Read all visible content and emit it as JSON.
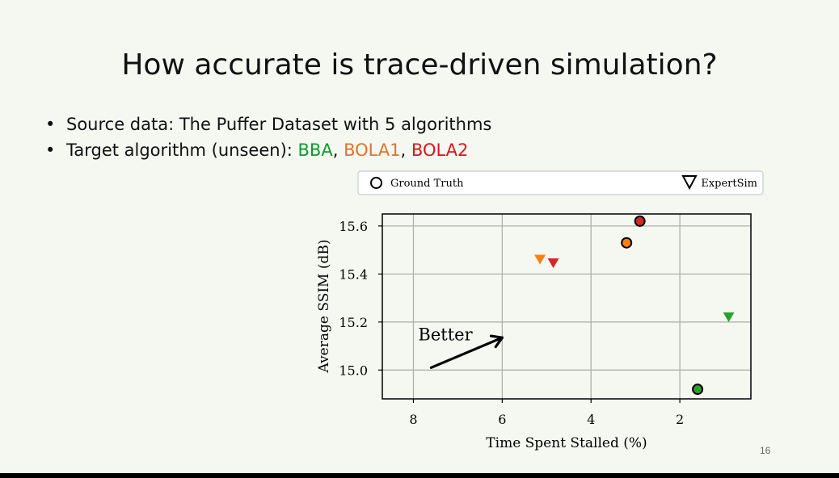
{
  "slide": {
    "title": "How accurate is trace-driven simulation?",
    "page_number": "16",
    "bullets": [
      {
        "text": "Source data: The Puffer Dataset with 5 algorithms"
      },
      {
        "prefix": "Target algorithm (unseen): ",
        "algorithms": [
          {
            "name": "BBA",
            "color": "#0e9a2e"
          },
          {
            "name": "BOLA1",
            "color": "#e3722b"
          },
          {
            "name": "BOLA2",
            "color": "#d8141c"
          }
        ],
        "separator": ", "
      }
    ]
  },
  "chart_data": {
    "type": "scatter",
    "xlabel": "Time Spent Stalled (%)",
    "ylabel": "Average SSIM (dB)",
    "xlim": [
      8.7,
      0.4
    ],
    "ylim": [
      14.88,
      15.65
    ],
    "x_inverted": true,
    "x_ticks": [
      8,
      6,
      4,
      2
    ],
    "y_ticks": [
      15.0,
      15.2,
      15.4,
      15.6
    ],
    "x_tick_labels": [
      "8",
      "6",
      "4",
      "2"
    ],
    "y_tick_labels": [
      "15.0",
      "15.2",
      "15.4",
      "15.6"
    ],
    "grid": true,
    "legend_position": "top, above plot",
    "legend": [
      {
        "label": "Ground Truth",
        "marker": "circle"
      },
      {
        "label": "ExpertSim",
        "marker": "triangle-down"
      }
    ],
    "annotation": {
      "text": "Better",
      "arrow_from": [
        7.6,
        15.01
      ],
      "arrow_to": [
        6.0,
        15.135
      ]
    },
    "series": [
      {
        "name": "Ground Truth",
        "marker": "circle",
        "points": [
          {
            "x": 1.6,
            "y": 14.92,
            "color": "#2ca02c"
          },
          {
            "x": 3.2,
            "y": 15.53,
            "color": "#ff7f0e"
          },
          {
            "x": 2.9,
            "y": 15.62,
            "color": "#d62728"
          }
        ]
      },
      {
        "name": "ExpertSim",
        "marker": "triangle-down",
        "points": [
          {
            "x": 0.9,
            "y": 15.22,
            "color": "#2ca02c"
          },
          {
            "x": 5.15,
            "y": 15.46,
            "color": "#ff7f0e"
          },
          {
            "x": 4.85,
            "y": 15.445,
            "color": "#d62728"
          }
        ]
      }
    ]
  }
}
